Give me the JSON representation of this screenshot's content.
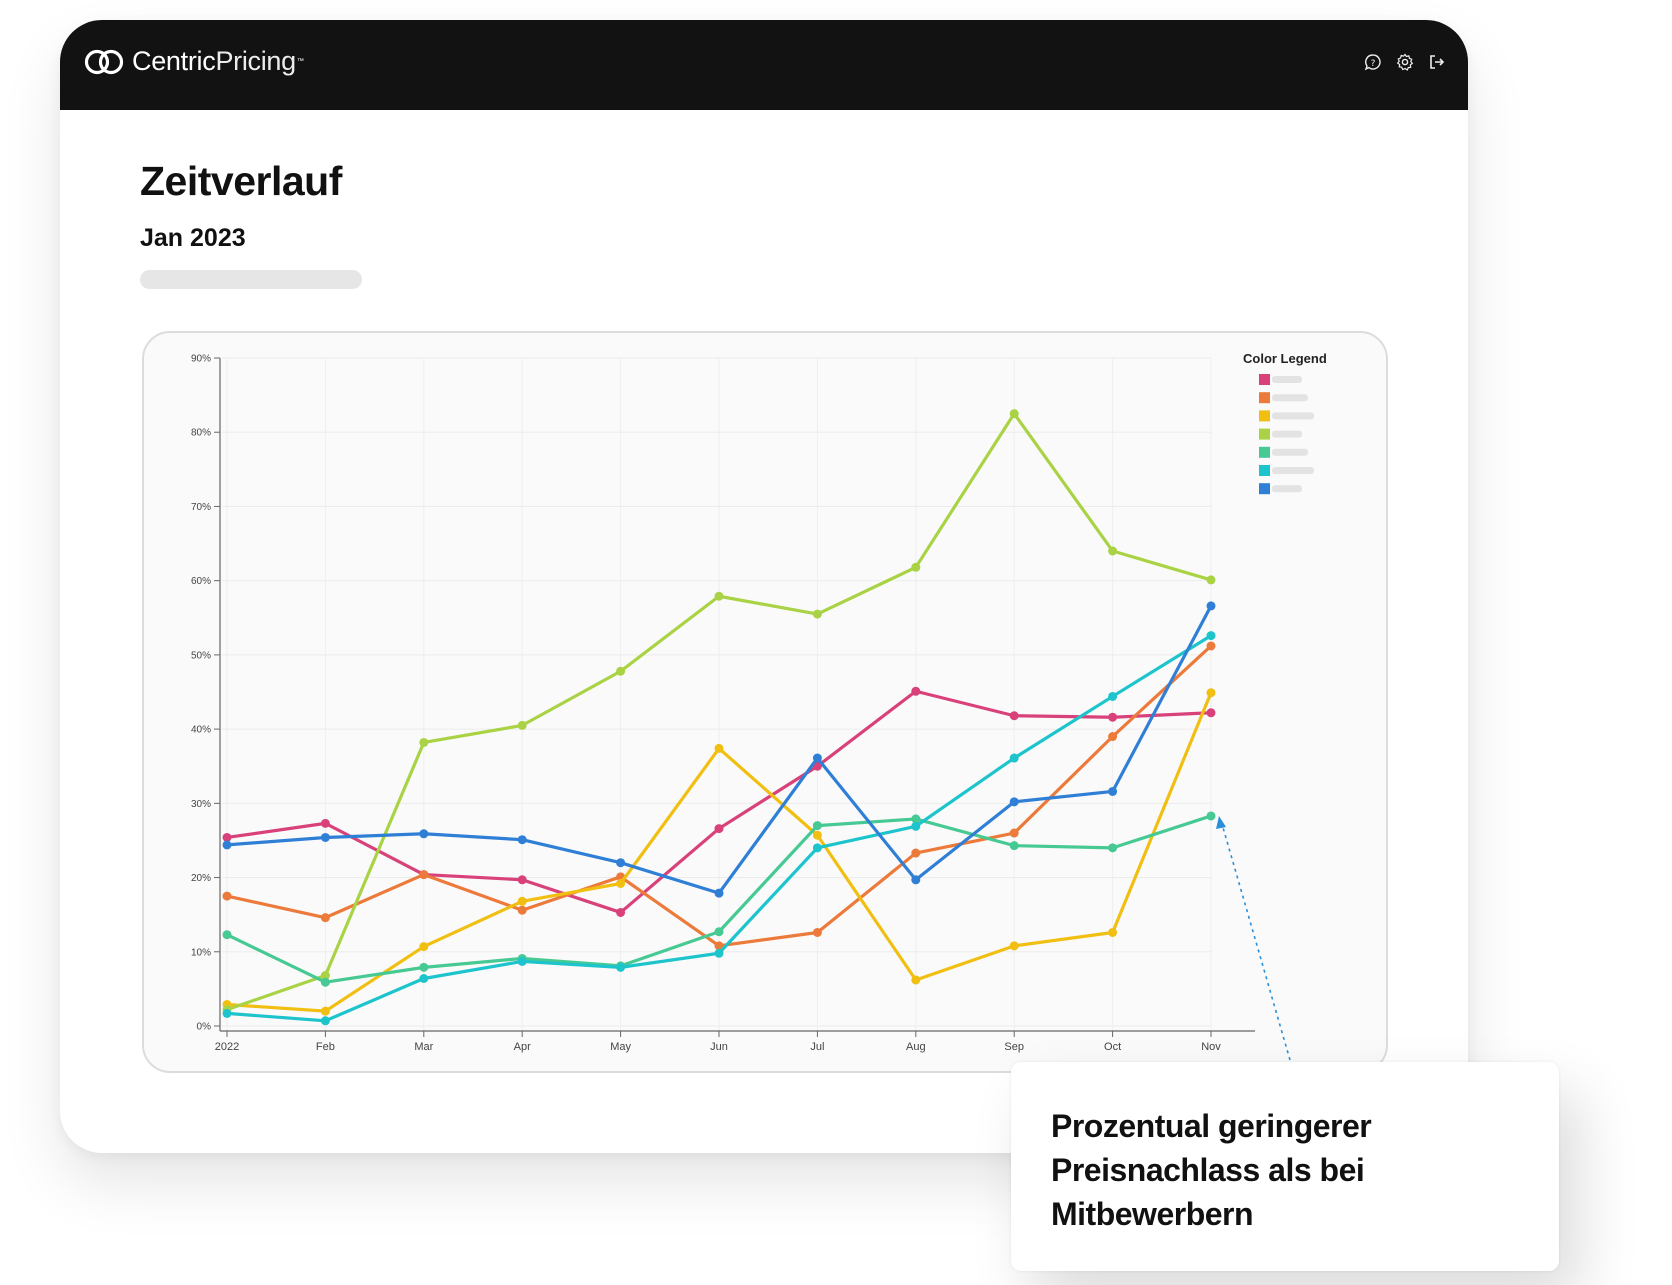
{
  "header": {
    "brand_primary": "Centric",
    "brand_secondary": "Pricing",
    "brand_tm": "™",
    "icons": [
      "help-chat-icon",
      "settings-gear-icon",
      "logout-icon"
    ]
  },
  "page": {
    "title": "Zeitverlauf",
    "subtitle": "Jan 2023"
  },
  "callout": {
    "text": "Prozentual geringerer Preisnachlass als bei Mitbewerbern"
  },
  "chart_data": {
    "type": "line",
    "title": "",
    "xlabel": "",
    "ylabel": "",
    "x": [
      "2022",
      "Feb",
      "Mar",
      "Apr",
      "May",
      "Jun",
      "Jul",
      "Aug",
      "Sep",
      "Oct",
      "Nov"
    ],
    "yticks": [
      "0%",
      "10%",
      "20%",
      "30%",
      "40%",
      "50%",
      "60%",
      "70%",
      "80%",
      "90%"
    ],
    "ylim": [
      0,
      90
    ],
    "grid": true,
    "legend_title": "Color Legend",
    "legend_position": "top-right",
    "series": [
      {
        "name": "",
        "color": "#d8417a",
        "values": [
          25.4,
          27.3,
          20.4,
          19.7,
          15.3,
          26.6,
          35.0,
          45.1,
          41.8,
          41.6,
          42.2
        ]
      },
      {
        "name": "",
        "color": "#ec7a3a",
        "values": [
          17.5,
          14.6,
          20.4,
          15.6,
          20.1,
          10.8,
          12.6,
          23.3,
          26.0,
          39.0,
          51.2
        ]
      },
      {
        "name": "",
        "color": "#f1bf12",
        "values": [
          2.9,
          2.0,
          10.7,
          16.8,
          19.2,
          37.4,
          25.7,
          6.2,
          10.8,
          12.6,
          44.9
        ]
      },
      {
        "name": "",
        "color": "#a9d344",
        "values": [
          2.2,
          6.8,
          38.2,
          40.5,
          47.8,
          57.9,
          55.5,
          61.8,
          82.5,
          64.0,
          60.1
        ]
      },
      {
        "name": "",
        "color": "#47c993",
        "values": [
          12.3,
          5.9,
          7.9,
          9.1,
          8.1,
          12.7,
          27.0,
          27.9,
          24.3,
          24.0,
          28.3
        ]
      },
      {
        "name": "",
        "color": "#1ec4cc",
        "values": [
          1.7,
          0.7,
          6.4,
          8.7,
          7.9,
          9.8,
          24.0,
          26.9,
          36.1,
          44.4,
          52.6
        ]
      },
      {
        "name": "",
        "color": "#2f7fd6",
        "values": [
          24.4,
          25.4,
          25.9,
          25.1,
          22.0,
          17.9,
          36.1,
          19.7,
          30.2,
          31.6,
          56.6
        ]
      }
    ]
  }
}
